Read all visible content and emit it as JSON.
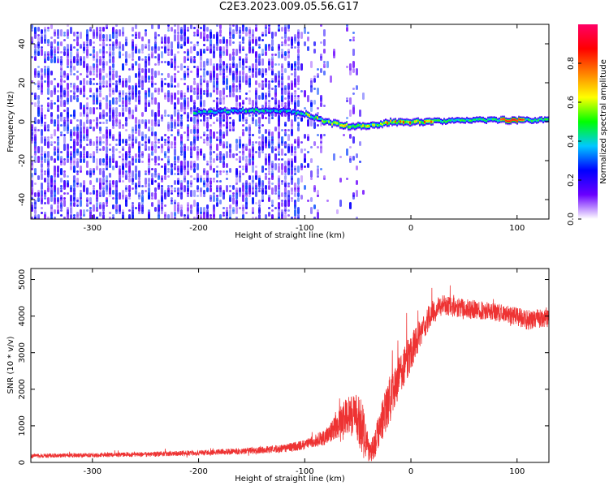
{
  "figure": {
    "title": "C2E3.2023.009.05.56.G17"
  },
  "chart_data": [
    {
      "type": "heatmap",
      "name": "spectrogram",
      "xlabel": "Height of straight line (km)",
      "ylabel": "Frequency (Hz)",
      "xlim": [
        -358,
        130
      ],
      "ylim": [
        -50,
        50
      ],
      "x_ticks": [
        -300,
        -200,
        -100,
        0,
        100
      ],
      "y_ticks": [
        -40,
        -20,
        0,
        20,
        40
      ],
      "grid": false,
      "colorbar": {
        "label": "Normalized spectral amplitude",
        "range": [
          0,
          1
        ],
        "ticks": [
          0.0,
          0.2,
          0.4,
          0.6,
          0.8
        ],
        "colors": [
          "#ffffff",
          "#6a00ff",
          "#0000ff",
          "#00c8ff",
          "#00ff00",
          "#ffff00",
          "#ff8000",
          "#ff0000",
          "#ff0066"
        ]
      },
      "ridge": {
        "description_points": [
          [
            -200,
            5
          ],
          [
            -160,
            6
          ],
          [
            -120,
            6
          ],
          [
            -100,
            4
          ],
          [
            -80,
            0
          ],
          [
            -60,
            -2
          ],
          [
            -40,
            -2
          ],
          [
            -20,
            0
          ],
          [
            0,
            0
          ],
          [
            50,
            1
          ],
          [
            100,
            1
          ],
          [
            130,
            1
          ]
        ],
        "peak_amplitude_near_x": 95
      }
    },
    {
      "type": "line",
      "name": "snr",
      "xlabel": "Height of straight line (km)",
      "ylabel": "SNR (10 * v/v)",
      "xlim": [
        -358,
        130
      ],
      "ylim": [
        0,
        5300
      ],
      "x_ticks": [
        -300,
        -200,
        -100,
        0,
        100
      ],
      "y_ticks": [
        0,
        1000,
        2000,
        3000,
        4000,
        5000
      ],
      "grid": false,
      "color": "#ee3333",
      "envelope": {
        "x": [
          -358,
          -300,
          -250,
          -200,
          -150,
          -120,
          -100,
          -80,
          -60,
          -50,
          -45,
          -40,
          -35,
          -30,
          -20,
          -10,
          0,
          10,
          20,
          30,
          50,
          70,
          90,
          110,
          130
        ],
        "mean": [
          180,
          200,
          220,
          260,
          320,
          380,
          480,
          700,
          1300,
          1200,
          900,
          300,
          400,
          900,
          1700,
          2400,
          3000,
          3600,
          4100,
          4300,
          4200,
          4150,
          4050,
          3900,
          3950
        ],
        "spread": [
          100,
          110,
          120,
          130,
          170,
          200,
          250,
          400,
          900,
          1200,
          1400,
          500,
          600,
          900,
          1200,
          1000,
          900,
          700,
          600,
          500,
          500,
          450,
          450,
          500,
          450
        ]
      }
    }
  ]
}
